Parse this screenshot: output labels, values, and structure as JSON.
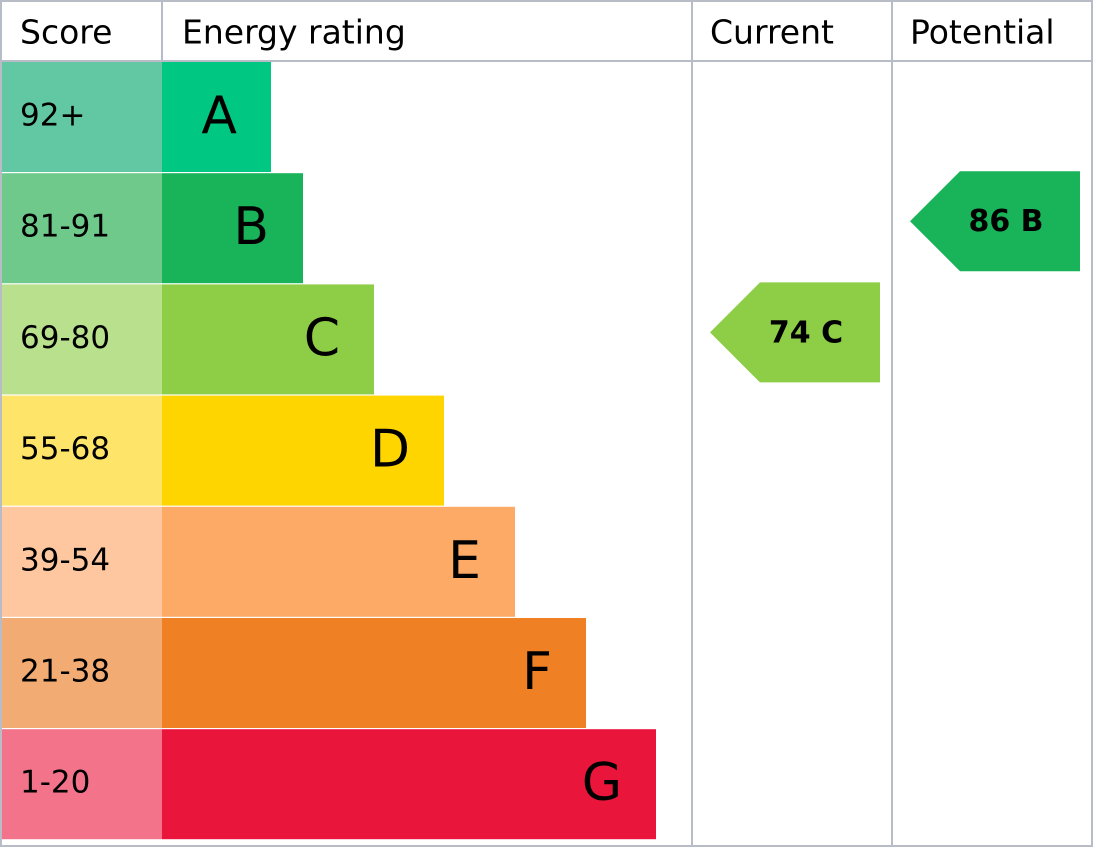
{
  "header": [
    "Score",
    "Energy rating",
    "Current",
    "Potential"
  ],
  "bands": [
    {
      "score": "92+",
      "letter": "A",
      "score_color": "#62c7a3",
      "color": "#00c781"
    },
    {
      "score": "81-91",
      "letter": "B",
      "score_color": "#6fc98b",
      "color": "#19b459"
    },
    {
      "score": "69-80",
      "letter": "C",
      "score_color": "#b9e08d",
      "color": "#8dce46"
    },
    {
      "score": "55-68",
      "letter": "D",
      "score_color": "#ffe46a",
      "color": "#ffd500"
    },
    {
      "score": "39-54",
      "letter": "E",
      "score_color": "#fec79f",
      "color": "#fcaa65"
    },
    {
      "score": "21-38",
      "letter": "F",
      "score_color": "#f2ab73",
      "color": "#ef8023"
    },
    {
      "score": "1-20",
      "letter": "G",
      "score_color": "#f2738a",
      "color": "#e9153b"
    }
  ],
  "current": {
    "score": 74,
    "rating": "C"
  },
  "potential": {
    "score": 86,
    "rating": "B"
  }
}
